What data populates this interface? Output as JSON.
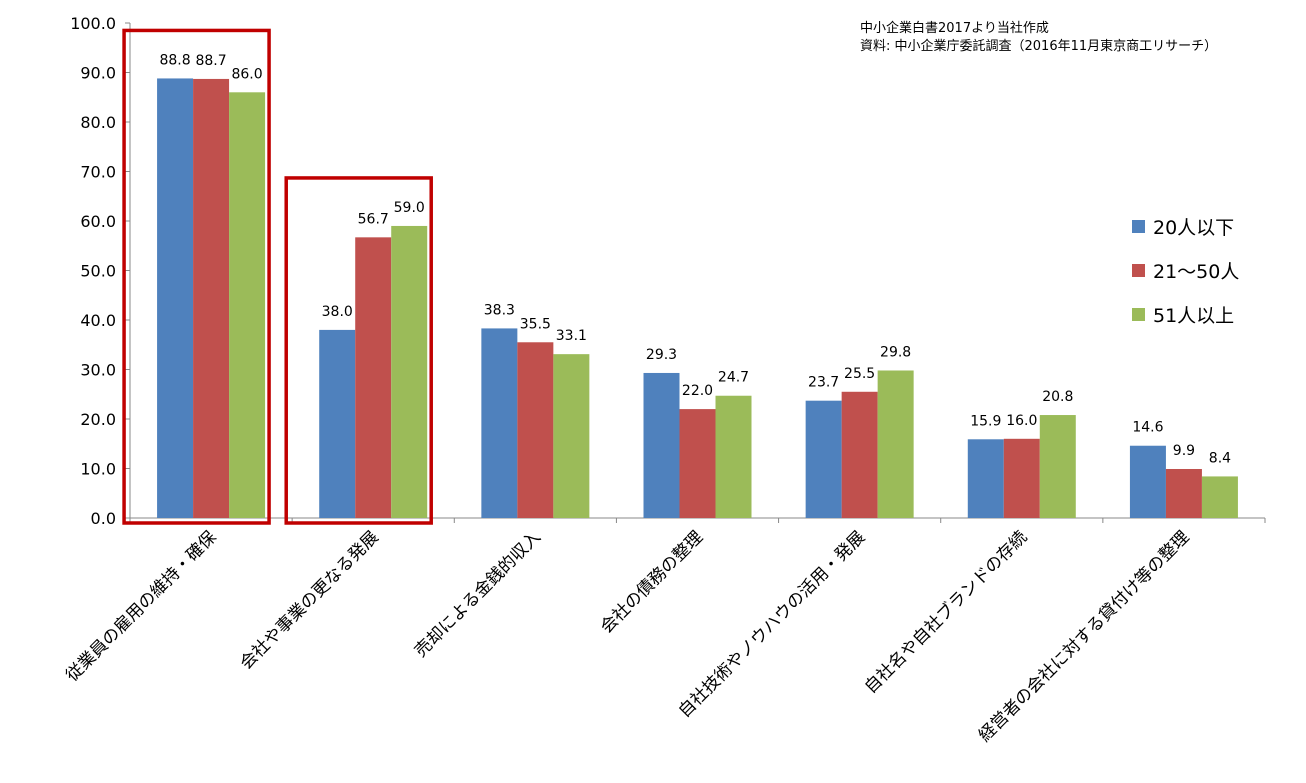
{
  "source_note": {
    "line1": "中小企業白書2017より当社作成",
    "line2": "資料: 中小企業庁委託調査（2016年11月東京商工リサーチ）"
  },
  "colors": {
    "series1": "#4F81BD",
    "series2": "#C0504D",
    "series3": "#9BBB59",
    "highlight": "#C00000"
  },
  "chart_data": {
    "type": "bar",
    "title": "",
    "xlabel": "",
    "ylabel": "",
    "ylim": [
      0,
      100
    ],
    "yticks": [
      "0.0",
      "10.0",
      "20.0",
      "30.0",
      "40.0",
      "50.0",
      "60.0",
      "70.0",
      "80.0",
      "90.0",
      "100.0"
    ],
    "grid": false,
    "legend_position": "right",
    "categories": [
      "従業員の雇用の維持・確保",
      "会社や事業の更なる発展",
      "売却による金銭的収入",
      "会社の債務の整理",
      "自社技術やノウハウの活用・発展",
      "自社名や自社ブランドの存続",
      "経営者の会社に対する貸付け等の整理"
    ],
    "series": [
      {
        "name": "20人以下",
        "values": [
          88.8,
          38.0,
          38.3,
          29.3,
          23.7,
          15.9,
          14.6
        ],
        "labels": [
          "88.8",
          "38.0",
          "38.3",
          "29.3",
          "23.7",
          "15.9",
          "14.6"
        ]
      },
      {
        "name": "21〜50人",
        "values": [
          88.7,
          56.7,
          35.5,
          22.0,
          25.5,
          16.0,
          9.9
        ],
        "labels": [
          "88.7",
          "56.7",
          "35.5",
          "22.0",
          "25.5",
          "16.0",
          "9.9"
        ]
      },
      {
        "name": "51人以上",
        "values": [
          86.0,
          59.0,
          33.1,
          24.7,
          29.8,
          20.8,
          8.4
        ],
        "labels": [
          "86.0",
          "59.0",
          "33.1",
          "24.7",
          "29.8",
          "20.8",
          "8.4"
        ]
      }
    ],
    "highlighted_categories": [
      0,
      1
    ]
  }
}
